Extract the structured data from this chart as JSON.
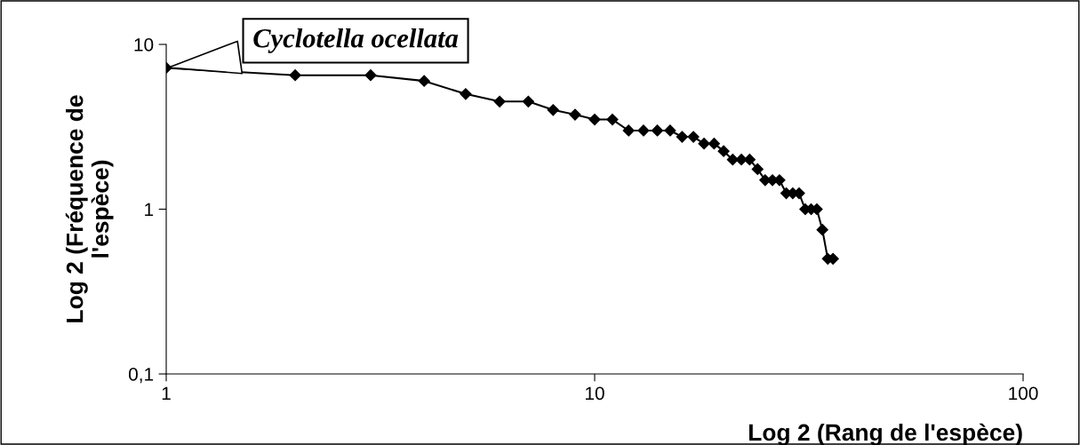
{
  "chart_data": {
    "type": "line",
    "xlabel": "Log 2 (Rang de l'espèce)",
    "ylabel": "Log 2 (Fréquence de\nl'espèce)",
    "log": "xy",
    "marker": "diamond",
    "line_style": "solid",
    "grid": false,
    "legend": false,
    "x": [
      1,
      2,
      3,
      4,
      5,
      6,
      7,
      8,
      9,
      10,
      11,
      12,
      13,
      14,
      15,
      16,
      17,
      18,
      19,
      20,
      21,
      22,
      23,
      24,
      25,
      26,
      27,
      28,
      29,
      30,
      31,
      32,
      33,
      34,
      35,
      36
    ],
    "series": [
      {
        "color": "#000000",
        "values": [
          7.2,
          6.5,
          6.5,
          6,
          5,
          4.5,
          4.5,
          4,
          3.75,
          3.5,
          3.5,
          3,
          3,
          3,
          3,
          2.75,
          2.75,
          2.5,
          2.5,
          2.25,
          2,
          2,
          2,
          1.75,
          1.5,
          1.5,
          1.5,
          1.25,
          1.25,
          1.25,
          1,
          1,
          1,
          0.75,
          0.5,
          0.5
        ]
      }
    ],
    "xlim": [
      1,
      100
    ],
    "xticks": [
      1,
      10,
      100
    ],
    "ylim": [
      0.1,
      10
    ],
    "yticks": [
      {
        "value": 0.1,
        "label": "0,1"
      },
      1,
      10
    ],
    "annotations": [
      {
        "text": "Cyclotella ocellata",
        "x": 1,
        "y": 7.2
      }
    ]
  }
}
